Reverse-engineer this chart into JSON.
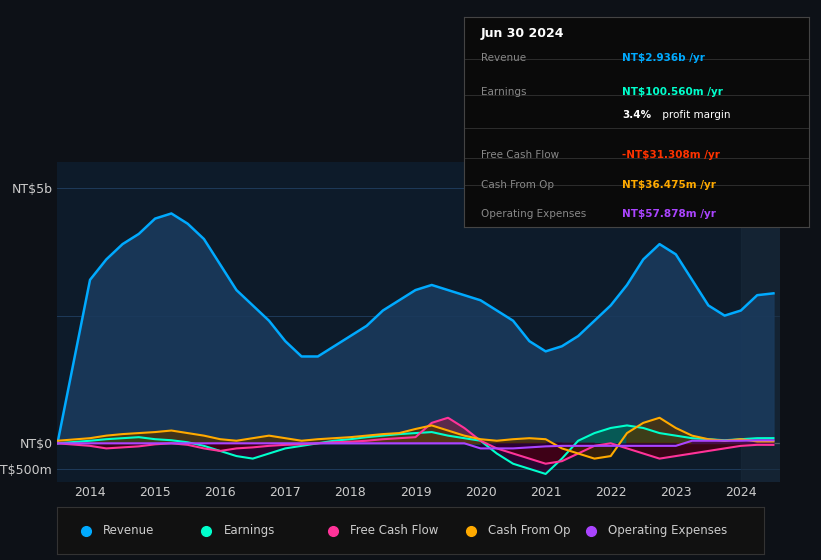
{
  "bg_color": "#0d1117",
  "plot_bg_color": "#0d1b2a",
  "x_years": [
    2013.5,
    2014.0,
    2014.25,
    2014.5,
    2014.75,
    2015.0,
    2015.25,
    2015.5,
    2015.75,
    2016.0,
    2016.25,
    2016.5,
    2016.75,
    2017.0,
    2017.25,
    2017.5,
    2017.75,
    2018.0,
    2018.25,
    2018.5,
    2018.75,
    2019.0,
    2019.25,
    2019.5,
    2019.75,
    2020.0,
    2020.25,
    2020.5,
    2020.75,
    2021.0,
    2021.25,
    2021.5,
    2021.75,
    2022.0,
    2022.25,
    2022.5,
    2022.75,
    2023.0,
    2023.25,
    2023.5,
    2023.75,
    2024.0,
    2024.25,
    2024.5
  ],
  "revenue": [
    0,
    3200,
    3600,
    3900,
    4100,
    4400,
    4500,
    4300,
    4000,
    3500,
    3000,
    2700,
    2400,
    2000,
    1700,
    1700,
    1900,
    2100,
    2300,
    2600,
    2800,
    3000,
    3100,
    3000,
    2900,
    2800,
    2600,
    2400,
    2000,
    1800,
    1900,
    2100,
    2400,
    2700,
    3100,
    3600,
    3900,
    3700,
    3200,
    2700,
    2500,
    2600,
    2900,
    2936
  ],
  "earnings": [
    0,
    50,
    80,
    100,
    120,
    80,
    60,
    20,
    -50,
    -150,
    -250,
    -300,
    -200,
    -100,
    -50,
    0,
    50,
    80,
    120,
    150,
    180,
    200,
    220,
    150,
    100,
    50,
    -200,
    -400,
    -500,
    -600,
    -300,
    50,
    200,
    300,
    350,
    300,
    200,
    150,
    100,
    80,
    60,
    80,
    100,
    101
  ],
  "free_cash_flow": [
    0,
    -50,
    -100,
    -80,
    -60,
    -20,
    0,
    -30,
    -100,
    -150,
    -100,
    -80,
    -50,
    -30,
    -20,
    0,
    20,
    30,
    50,
    80,
    100,
    120,
    400,
    500,
    300,
    50,
    -100,
    -200,
    -300,
    -400,
    -350,
    -200,
    -50,
    0,
    -100,
    -200,
    -300,
    -250,
    -200,
    -150,
    -100,
    -50,
    -30,
    -31
  ],
  "cash_from_op": [
    50,
    100,
    150,
    180,
    200,
    220,
    250,
    200,
    150,
    80,
    50,
    100,
    150,
    100,
    50,
    80,
    100,
    120,
    150,
    180,
    200,
    280,
    350,
    250,
    150,
    80,
    50,
    80,
    100,
    80,
    -100,
    -200,
    -300,
    -250,
    200,
    400,
    500,
    300,
    150,
    80,
    50,
    80,
    36,
    36
  ],
  "op_expenses": [
    0,
    0,
    0,
    0,
    0,
    0,
    0,
    0,
    0,
    0,
    0,
    0,
    0,
    0,
    0,
    0,
    0,
    0,
    0,
    0,
    0,
    0,
    0,
    0,
    0,
    -100,
    -100,
    -100,
    -80,
    -60,
    -50,
    -50,
    -50,
    -50,
    -50,
    -50,
    -50,
    -50,
    50,
    50,
    50,
    50,
    58,
    58
  ],
  "revenue_color": "#00aaff",
  "revenue_fill": "#1a3a5c",
  "earnings_color": "#00ffcc",
  "free_cash_flow_color": "#ff3399",
  "cash_from_op_color": "#ffaa00",
  "op_expenses_color": "#aa44ff",
  "grid_color": "#1e3a5a",
  "zero_line_color": "#aaaaaa",
  "text_color": "#cccccc",
  "x_ticks": [
    2014,
    2015,
    2016,
    2017,
    2018,
    2019,
    2020,
    2021,
    2022,
    2023,
    2024
  ],
  "ylim_top": 5500,
  "ylim_bottom": -750,
  "info_box": {
    "date": "Jun 30 2024",
    "revenue_val": "NT$2.936b",
    "revenue_color": "#00aaff",
    "earnings_val": "NT$100.560m",
    "earnings_color": "#00ffcc",
    "profit_margin": "3.4%",
    "fcf_val": "-NT$31.308m",
    "fcf_color": "#ff3300",
    "cashop_val": "NT$36.475m",
    "cashop_color": "#ffaa00",
    "opex_val": "NT$57.878m",
    "opex_color": "#aa44ff"
  },
  "legend_items": [
    {
      "label": "Revenue",
      "color": "#00aaff"
    },
    {
      "label": "Earnings",
      "color": "#00ffcc"
    },
    {
      "label": "Free Cash Flow",
      "color": "#ff3399"
    },
    {
      "label": "Cash From Op",
      "color": "#ffaa00"
    },
    {
      "label": "Operating Expenses",
      "color": "#aa44ff"
    }
  ]
}
